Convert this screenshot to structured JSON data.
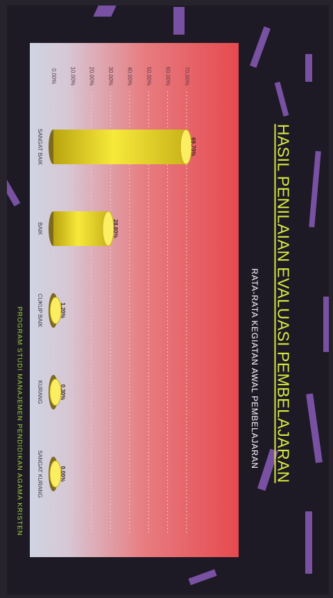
{
  "poster": {
    "title": "HASIL PENILAIAN EVALUASI PEMBELAJARAN",
    "footer": "PROGRAM STUDI MANAJEMEN PENDIDIKAN AGAMA KRISTEN",
    "colors": {
      "background": "#1d1a26",
      "accent_shapes": "#8a5cb8",
      "title": "#d9ec3e",
      "bar": "#f4e233",
      "panel_red": "#e64a4f",
      "panel_light": "#cfd4e2"
    }
  },
  "chart_data": {
    "type": "bar",
    "orientation": "vertical (page rotated 90°)",
    "title": "RATA-RATA KEGIATAN AWAL PEMBELAJARAN",
    "categories": [
      "SANGAT BAIK",
      "BAIK",
      "CUKUP BAIK",
      "KURANG",
      "SANGAT KURANG"
    ],
    "values": [
      69.7,
      28.8,
      1.2,
      0.3,
      0.0
    ],
    "value_labels": [
      "69.70%",
      "28.80%",
      "1.20%",
      "0.30%",
      "0.00%"
    ],
    "ylim": [
      0,
      70
    ],
    "yticks": [
      "0.00%",
      "10.00%",
      "20.00%",
      "30.00%",
      "40.00%",
      "50.00%",
      "60.00%",
      "70.00%"
    ],
    "ytick_values": [
      0,
      10,
      20,
      30,
      40,
      50,
      60,
      70
    ],
    "grid": true,
    "bar_color": "#f4e233"
  }
}
